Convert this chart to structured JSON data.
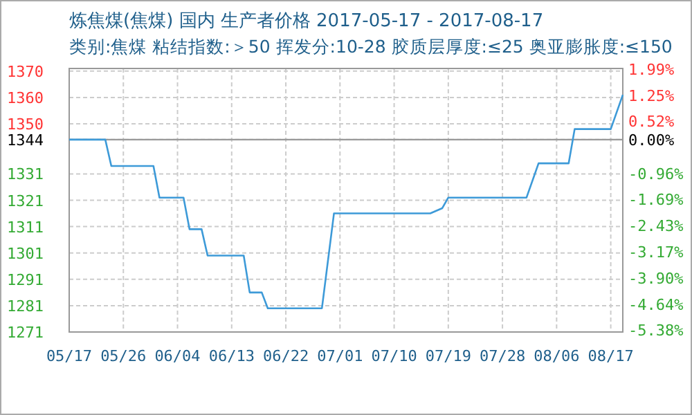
{
  "chart_data": {
    "type": "line",
    "title": "炼焦煤(焦煤) 国内 生产者价格 2017-05-17 - 2017-08-17",
    "subtitle": "类别:焦煤 粘结指数:＞50 挥发分:10-28 胶质层厚度:≤25 奥亚膨胀度:≤150",
    "x": [
      "--05-17",
      "--05-23",
      "--05-24",
      "--05-31",
      "--06-01",
      "--06-05",
      "--06-06",
      "--06-08",
      "--06-09",
      "--06-15",
      "--06-16",
      "--06-18",
      "--06-19",
      "--06-28",
      "--06-30",
      "--07-16",
      "--07-18",
      "--07-19",
      "--08-01",
      "--08-03",
      "--08-08",
      "--08-09",
      "--08-15",
      "--08-17"
    ],
    "series": [
      {
        "color": "#3d9ad8",
        "values": [
          1344,
          1344,
          1334,
          1334,
          1322,
          1322,
          1310,
          1310,
          1300,
          1300,
          1286,
          1286,
          1280,
          1280,
          1316,
          1316,
          1318,
          1322,
          1322,
          1335,
          1335,
          1348,
          1348,
          1361
        ]
      }
    ],
    "xlim": [
      "--05-17",
      "--08-17"
    ],
    "xticks": [
      {
        "value": "--05-17",
        "label": "05/17"
      },
      {
        "value": "--05-26",
        "label": "05/26"
      },
      {
        "value": "--06-04",
        "label": "06/04"
      },
      {
        "value": "--06-13",
        "label": "06/13"
      },
      {
        "value": "--06-22",
        "label": "06/22"
      },
      {
        "value": "--07-01",
        "label": "07/01"
      },
      {
        "value": "--07-10",
        "label": "07/10"
      },
      {
        "value": "--07-19",
        "label": "07/19"
      },
      {
        "value": "--07-28",
        "label": "07/28"
      },
      {
        "value": "--08-06",
        "label": "08/06"
      },
      {
        "value": "--08-15",
        "label": "08/17"
      }
    ],
    "ylim": [
      1271,
      1371
    ],
    "yticks": [
      1370,
      1360,
      1350,
      1344,
      1331,
      1321,
      1311,
      1301,
      1291,
      1281,
      1271
    ],
    "y2lim": [
      -5.43,
      2.01
    ],
    "y2ticks": [
      {
        "value": 1.99,
        "label": "1.99%"
      },
      {
        "value": 1.25,
        "label": "1.25%"
      },
      {
        "value": 0.52,
        "label": "0.52%"
      },
      {
        "value": 0,
        "label": "0.00%"
      },
      {
        "value": -0.96,
        "label": "-0.96%"
      },
      {
        "value": -1.69,
        "label": "-1.69%"
      },
      {
        "value": -2.43,
        "label": "-2.43%"
      },
      {
        "value": -3.17,
        "label": "-3.17%"
      },
      {
        "value": -3.9,
        "label": "-3.90%"
      },
      {
        "value": -4.64,
        "label": "-4.64%"
      },
      {
        "value": -5.38,
        "label": "-5.38%"
      }
    ],
    "ref_lines": [
      {
        "axis": "y",
        "value": 1344,
        "color": "#999999"
      }
    ],
    "grid": true,
    "marker": "none",
    "line_style": "solid"
  }
}
